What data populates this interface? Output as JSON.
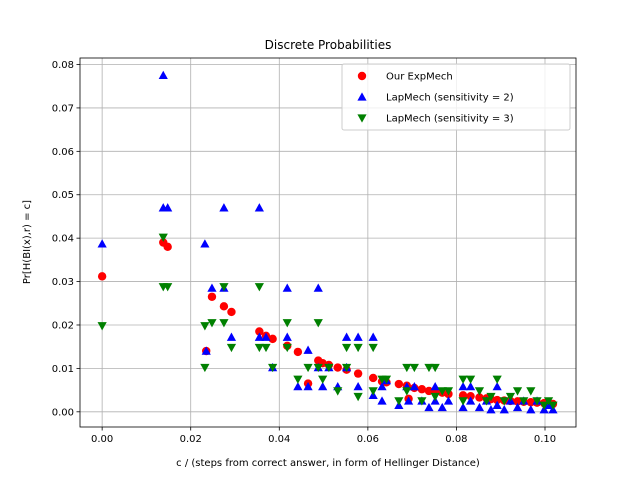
{
  "chart_data": {
    "type": "scatter",
    "title": "Discrete Probabilities",
    "xlabel": "c / (steps from correct answer, in form of Hellinger Distance)",
    "ylabel": "Pr[H(BI(x),r) = c]",
    "xlim": [
      -0.005,
      0.107
    ],
    "ylim": [
      -0.0035,
      0.0815
    ],
    "xticks": [
      0.0,
      0.02,
      0.04,
      0.06,
      0.08,
      0.1
    ],
    "xtick_labels": [
      "0.00",
      "0.02",
      "0.04",
      "0.06",
      "0.08",
      "0.10"
    ],
    "yticks": [
      0.0,
      0.01,
      0.02,
      0.03,
      0.04,
      0.05,
      0.06,
      0.07,
      0.08
    ],
    "ytick_labels": [
      "0.00",
      "0.01",
      "0.02",
      "0.03",
      "0.04",
      "0.05",
      "0.06",
      "0.07",
      "0.08"
    ],
    "grid": true,
    "legend_position": "top-right",
    "series": [
      {
        "name": "Our ExpMech",
        "marker": "circle",
        "color": "#ff0000",
        "points": [
          [
            0.0,
            0.0312
          ],
          [
            0.0138,
            0.039
          ],
          [
            0.0148,
            0.038
          ],
          [
            0.0235,
            0.014
          ],
          [
            0.0248,
            0.0265
          ],
          [
            0.0275,
            0.0243
          ],
          [
            0.0292,
            0.023
          ],
          [
            0.0355,
            0.0185
          ],
          [
            0.037,
            0.0175
          ],
          [
            0.0385,
            0.0168
          ],
          [
            0.0418,
            0.0152
          ],
          [
            0.0442,
            0.0138
          ],
          [
            0.0465,
            0.0065
          ],
          [
            0.0488,
            0.0118
          ],
          [
            0.0498,
            0.0112
          ],
          [
            0.0512,
            0.0108
          ],
          [
            0.0532,
            0.0102
          ],
          [
            0.0552,
            0.0097
          ],
          [
            0.0578,
            0.0088
          ],
          [
            0.0612,
            0.0078
          ],
          [
            0.0632,
            0.007
          ],
          [
            0.0642,
            0.0068
          ],
          [
            0.067,
            0.0064
          ],
          [
            0.0688,
            0.006
          ],
          [
            0.0705,
            0.0055
          ],
          [
            0.0722,
            0.0052
          ],
          [
            0.0692,
            0.003
          ],
          [
            0.0738,
            0.0048
          ],
          [
            0.0752,
            0.0046
          ],
          [
            0.0768,
            0.0044
          ],
          [
            0.0782,
            0.0041
          ],
          [
            0.0815,
            0.0038
          ],
          [
            0.0832,
            0.0036
          ],
          [
            0.0852,
            0.0033
          ],
          [
            0.0868,
            0.0031
          ],
          [
            0.0878,
            0.0029
          ],
          [
            0.0892,
            0.0027
          ],
          [
            0.0908,
            0.0026
          ],
          [
            0.0922,
            0.0025
          ],
          [
            0.0938,
            0.0024
          ],
          [
            0.0952,
            0.0023
          ],
          [
            0.0968,
            0.0022
          ],
          [
            0.0982,
            0.0021
          ],
          [
            0.0998,
            0.002
          ],
          [
            0.1008,
            0.0019
          ],
          [
            0.1018,
            0.0018
          ]
        ]
      },
      {
        "name": "LapMech (sensitivity = 2)",
        "marker": "triangle-up",
        "color": "#0000ff",
        "points": [
          [
            0.0,
            0.0387
          ],
          [
            0.0138,
            0.0775
          ],
          [
            0.0138,
            0.047
          ],
          [
            0.0148,
            0.047
          ],
          [
            0.0232,
            0.0387
          ],
          [
            0.0235,
            0.014
          ],
          [
            0.0248,
            0.0285
          ],
          [
            0.0275,
            0.047
          ],
          [
            0.0275,
            0.0285
          ],
          [
            0.0292,
            0.0172
          ],
          [
            0.0355,
            0.047
          ],
          [
            0.0355,
            0.0172
          ],
          [
            0.037,
            0.0172
          ],
          [
            0.0385,
            0.0102
          ],
          [
            0.0418,
            0.0285
          ],
          [
            0.0418,
            0.0172
          ],
          [
            0.0442,
            0.0058
          ],
          [
            0.0465,
            0.0142
          ],
          [
            0.0465,
            0.0058
          ],
          [
            0.0488,
            0.0285
          ],
          [
            0.0488,
            0.0102
          ],
          [
            0.0498,
            0.0058
          ],
          [
            0.0512,
            0.0102
          ],
          [
            0.0532,
            0.0058
          ],
          [
            0.0552,
            0.0172
          ],
          [
            0.0552,
            0.0102
          ],
          [
            0.0578,
            0.0172
          ],
          [
            0.0578,
            0.0058
          ],
          [
            0.0612,
            0.0172
          ],
          [
            0.0612,
            0.0038
          ],
          [
            0.0632,
            0.0058
          ],
          [
            0.0632,
            0.0025
          ],
          [
            0.0642,
            0.0072
          ],
          [
            0.067,
            0.0015
          ],
          [
            0.0688,
            0.0058
          ],
          [
            0.0692,
            0.0025
          ],
          [
            0.0705,
            0.0058
          ],
          [
            0.0722,
            0.0025
          ],
          [
            0.0738,
            0.001
          ],
          [
            0.0752,
            0.0058
          ],
          [
            0.0752,
            0.0025
          ],
          [
            0.0768,
            0.001
          ],
          [
            0.0782,
            0.0025
          ],
          [
            0.0815,
            0.0058
          ],
          [
            0.0815,
            0.001
          ],
          [
            0.0832,
            0.0058
          ],
          [
            0.0832,
            0.0025
          ],
          [
            0.0852,
            0.001
          ],
          [
            0.0868,
            0.0025
          ],
          [
            0.0878,
            0.0005
          ],
          [
            0.0892,
            0.0058
          ],
          [
            0.0892,
            0.0015
          ],
          [
            0.0908,
            0.0005
          ],
          [
            0.0922,
            0.0025
          ],
          [
            0.0938,
            0.001
          ],
          [
            0.0952,
            0.0025
          ],
          [
            0.0968,
            0.0005
          ],
          [
            0.0982,
            0.0025
          ],
          [
            0.0998,
            0.0005
          ],
          [
            0.1008,
            0.0015
          ],
          [
            0.1018,
            0.0005
          ]
        ]
      },
      {
        "name": "LapMech (sensitivity = 3)",
        "marker": "triangle-down",
        "color": "#008000",
        "points": [
          [
            0.0,
            0.0198
          ],
          [
            0.0138,
            0.0402
          ],
          [
            0.0138,
            0.0288
          ],
          [
            0.0148,
            0.0288
          ],
          [
            0.0232,
            0.0198
          ],
          [
            0.0232,
            0.0102
          ],
          [
            0.0248,
            0.0205
          ],
          [
            0.0275,
            0.0288
          ],
          [
            0.0275,
            0.0205
          ],
          [
            0.0292,
            0.0148
          ],
          [
            0.0355,
            0.0288
          ],
          [
            0.0355,
            0.0148
          ],
          [
            0.037,
            0.0148
          ],
          [
            0.0385,
            0.0102
          ],
          [
            0.0418,
            0.0205
          ],
          [
            0.0418,
            0.0148
          ],
          [
            0.0442,
            0.0075
          ],
          [
            0.0465,
            0.0102
          ],
          [
            0.0488,
            0.0205
          ],
          [
            0.0488,
            0.0102
          ],
          [
            0.0498,
            0.0075
          ],
          [
            0.0512,
            0.0102
          ],
          [
            0.0532,
            0.0048
          ],
          [
            0.0552,
            0.0148
          ],
          [
            0.0552,
            0.0102
          ],
          [
            0.0578,
            0.0148
          ],
          [
            0.0578,
            0.0035
          ],
          [
            0.0612,
            0.0148
          ],
          [
            0.0612,
            0.0048
          ],
          [
            0.0632,
            0.0075
          ],
          [
            0.0642,
            0.0075
          ],
          [
            0.067,
            0.0025
          ],
          [
            0.0688,
            0.0102
          ],
          [
            0.0688,
            0.0048
          ],
          [
            0.0705,
            0.0102
          ],
          [
            0.0722,
            0.0025
          ],
          [
            0.0738,
            0.0102
          ],
          [
            0.0752,
            0.0102
          ],
          [
            0.0752,
            0.0035
          ],
          [
            0.0768,
            0.0048
          ],
          [
            0.0782,
            0.0048
          ],
          [
            0.0815,
            0.0075
          ],
          [
            0.0815,
            0.0025
          ],
          [
            0.0832,
            0.0075
          ],
          [
            0.0852,
            0.0048
          ],
          [
            0.0868,
            0.0025
          ],
          [
            0.0878,
            0.0035
          ],
          [
            0.0892,
            0.0075
          ],
          [
            0.0908,
            0.0025
          ],
          [
            0.0922,
            0.0035
          ],
          [
            0.0938,
            0.0048
          ],
          [
            0.0952,
            0.0025
          ],
          [
            0.0968,
            0.0048
          ],
          [
            0.0982,
            0.0025
          ],
          [
            0.0998,
            0.0015
          ],
          [
            0.1008,
            0.0025
          ],
          [
            0.1018,
            0.0015
          ]
        ]
      }
    ]
  }
}
